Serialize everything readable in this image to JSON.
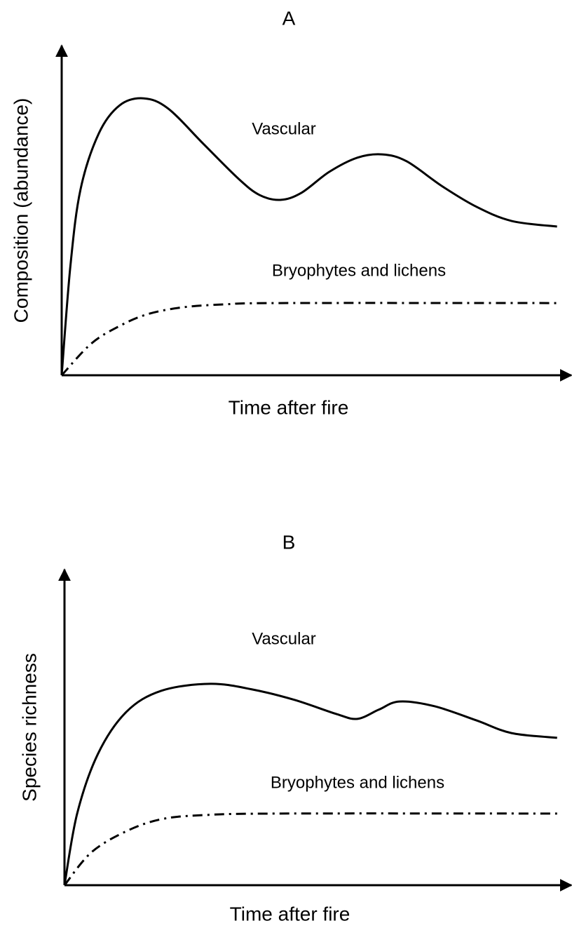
{
  "chart_data": [
    {
      "type": "line",
      "title": "A",
      "xlabel": "Time after fire",
      "ylabel": "Composition (abundance)",
      "xlim": [
        0,
        100
      ],
      "ylim": [
        0,
        100
      ],
      "series": [
        {
          "name": "Vascular",
          "color": "#000000",
          "linestyle": "solid",
          "x": [
            0,
            1.7,
            3.7,
            7.3,
            11.4,
            16.1,
            20.9,
            27.8,
            34.7,
            38.8,
            42.9,
            47,
            52.5,
            58,
            62.9,
            67.7,
            74.6,
            81.4,
            88.3,
            97.2
          ],
          "values": [
            0,
            33,
            56.4,
            73.4,
            81.9,
            84,
            80.9,
            70.2,
            59.6,
            54.7,
            53.2,
            55.3,
            61.7,
            66,
            67,
            64.9,
            57.4,
            51.1,
            46.8,
            45.1
          ]
        },
        {
          "name": "Bryophytes and lichens",
          "color": "#000000",
          "linestyle": "dashdot",
          "x": [
            0,
            5.8,
            11.3,
            16.8,
            23.7,
            31.9,
            42.9,
            97.2
          ],
          "values": [
            0,
            9.6,
            14.9,
            18.5,
            20.6,
            21.5,
            21.9,
            21.9
          ]
        }
      ]
    },
    {
      "type": "line",
      "title": "B",
      "xlabel": "Time after fire",
      "ylabel": "Species richness",
      "xlim": [
        0,
        100
      ],
      "ylim": [
        0,
        100
      ],
      "series": [
        {
          "name": "Vascular",
          "color": "#000000",
          "linestyle": "solid",
          "x": [
            0,
            2.5,
            6.6,
            12.2,
            19.1,
            28.8,
            37.1,
            45.4,
            53.7,
            57.8,
            62,
            66.1,
            73,
            81.3,
            88.2,
            97.2
          ],
          "values": [
            0,
            22.7,
            41.6,
            54.9,
            61.6,
            63.8,
            62,
            58.7,
            54.2,
            52.7,
            55.6,
            58.2,
            56.7,
            52.2,
            48.2,
            46.7
          ]
        },
        {
          "name": "Bryophytes and lichens",
          "color": "#000000",
          "linestyle": "dashdot",
          "x": [
            0,
            5.3,
            12.2,
            19.1,
            27.4,
            42.6,
            97.2
          ],
          "values": [
            0,
            10.4,
            17.1,
            20.9,
            22.2,
            22.7,
            22.7
          ]
        }
      ]
    }
  ]
}
